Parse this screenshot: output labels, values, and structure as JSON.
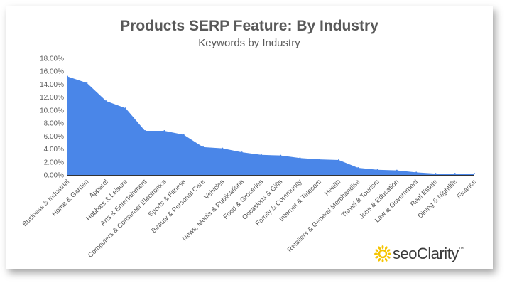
{
  "chart_data": {
    "type": "area",
    "title": "Products SERP Feature: By Industry",
    "subtitle": "Keywords by Industry",
    "categories": [
      "Business & Industrial",
      "Home & Garden",
      "Apparel",
      "Hobbies & Leisure",
      "Arts & Entertainment",
      "Computers & Consumer Electronics",
      "Sports & Fitness",
      "Beauty & Personal Care",
      "Vehicles",
      "News, Media & Publications",
      "Food & Groceries",
      "Occasions & Gifts",
      "Family & Community",
      "Internet & Telecom",
      "Health",
      "Retailers & General Merchandise",
      "Travel & Tourism",
      "Jobs & Education",
      "Law & Government",
      "Real Estate",
      "Dining & Nightlife",
      "Finance"
    ],
    "values": [
      15.2,
      14.2,
      11.4,
      10.3,
      6.8,
      6.8,
      6.2,
      4.3,
      4.1,
      3.5,
      3.1,
      3.0,
      2.6,
      2.4,
      2.3,
      1.1,
      0.8,
      0.7,
      0.4,
      0.2,
      0.2,
      0.2
    ],
    "yticks": [
      "0.00%",
      "2.00%",
      "4.00%",
      "6.00%",
      "8.00%",
      "10.00%",
      "12.00%",
      "14.00%",
      "16.00%",
      "18.00%"
    ],
    "ylim": [
      0,
      18
    ],
    "color": "#4a86e8",
    "grid": false
  },
  "logo": {
    "text": "seoClarity",
    "tm": "™",
    "color": "#f5c400"
  }
}
